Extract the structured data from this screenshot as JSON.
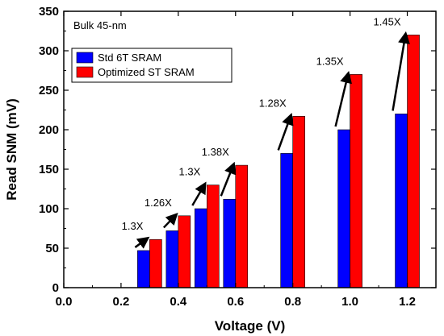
{
  "chart_data": {
    "type": "bar",
    "annotation_text": "Bulk 45-nm",
    "xlabel": "Voltage (V)",
    "ylabel": "Read SNM (mV)",
    "xlim": [
      0.0,
      1.3
    ],
    "ylim": [
      0,
      350
    ],
    "xticks": [
      "0.0",
      "0.2",
      "0.4",
      "0.6",
      "0.8",
      "1.0",
      "1.2"
    ],
    "yticks": [
      "0",
      "50",
      "100",
      "150",
      "200",
      "250",
      "300",
      "350"
    ],
    "x": [
      0.3,
      0.4,
      0.5,
      0.6,
      0.8,
      1.0,
      1.2
    ],
    "series": [
      {
        "name": "Std 6T SRAM",
        "color": "#0000ff",
        "values": [
          47,
          72,
          100,
          112,
          170,
          200,
          220
        ]
      },
      {
        "name": "Optimized ST SRAM",
        "color": "#ff0000",
        "values": [
          61,
          91,
          130,
          155,
          217,
          270,
          320
        ]
      }
    ],
    "ratio_labels": [
      "1.3X",
      "1.26X",
      "1.3X",
      "1.38X",
      "1.28X",
      "1.35X",
      "1.45X"
    ],
    "legend_position": "upper-left",
    "grid": false
  }
}
